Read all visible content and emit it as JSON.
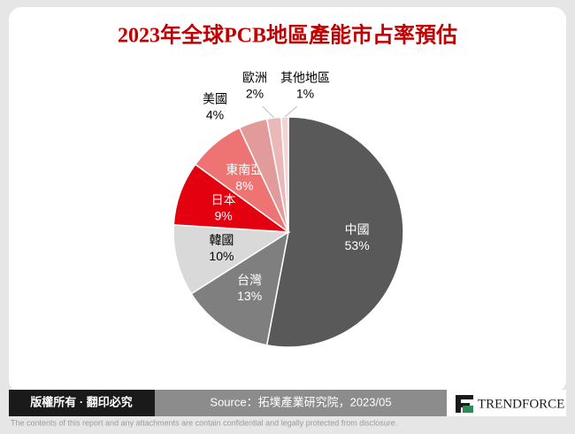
{
  "chart_data": {
    "type": "pie",
    "title": "2023年全球PCB地區產能市占率預估",
    "categories": [
      "中國",
      "台灣",
      "韓國",
      "日本",
      "東南亞",
      "美國",
      "歐洲",
      "其他地區"
    ],
    "values": [
      53,
      13,
      10,
      9,
      8,
      4,
      2,
      1
    ],
    "value_labels": [
      "53%",
      "13%",
      "10%",
      "9%",
      "8%",
      "4%",
      "2%",
      "1%"
    ],
    "colors": [
      "#595959",
      "#7f7f7f",
      "#d9d9d9",
      "#e3000f",
      "#ee7474",
      "#e39a9a",
      "#eab8b8",
      "#f2d4d4"
    ]
  },
  "footer": {
    "rights": "版權所有 · 翻印必究",
    "source": "Source：拓墣產業研究院，2023/05",
    "brand": "TRENDFORCE",
    "disclaimer": "The contents of this report and any attachments are contain confidential and legally protected from disclosure."
  }
}
